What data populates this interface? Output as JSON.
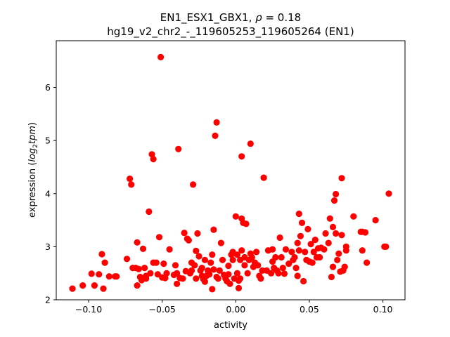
{
  "chart_data": {
    "type": "scatter",
    "title_line1": "EN1_ESX1_GBX1, ",
    "title_rho_symbol": "ρ",
    "title_rho_eq": " = 0.18",
    "title_line2": "hg19_v2_chr2_-_119605253_119605264 (EN1)",
    "xlabel": "activity",
    "ylabel_prefix": "expression (",
    "ylabel_log": "log",
    "ylabel_sub": "2",
    "ylabel_tpm": "tpm",
    "ylabel_suffix": ")",
    "xlim": [
      -0.122,
      0.115
    ],
    "ylim": [
      2.0,
      6.88
    ],
    "xticks": [
      {
        "value": -0.1,
        "label": "−0.10"
      },
      {
        "value": -0.05,
        "label": "−0.05"
      },
      {
        "value": 0.0,
        "label": "0.00"
      },
      {
        "value": 0.05,
        "label": "0.05"
      },
      {
        "value": 0.1,
        "label": "0.10"
      }
    ],
    "yticks": [
      {
        "value": 2,
        "label": "2"
      },
      {
        "value": 3,
        "label": "3"
      },
      {
        "value": 4,
        "label": "4"
      },
      {
        "value": 5,
        "label": "5"
      },
      {
        "value": 6,
        "label": "6"
      }
    ],
    "marker_color": "#ff0000",
    "points": [
      [
        -0.111,
        2.21
      ],
      [
        -0.104,
        2.27
      ],
      [
        -0.098,
        2.49
      ],
      [
        -0.096,
        2.27
      ],
      [
        -0.093,
        2.48
      ],
      [
        -0.091,
        2.86
      ],
      [
        -0.09,
        2.21
      ],
      [
        -0.089,
        2.7
      ],
      [
        -0.086,
        2.44
      ],
      [
        -0.082,
        2.44
      ],
      [
        -0.081,
        2.44
      ],
      [
        -0.074,
        2.77
      ],
      [
        -0.072,
        4.28
      ],
      [
        -0.071,
        4.17
      ],
      [
        -0.07,
        2.6
      ],
      [
        -0.068,
        2.6
      ],
      [
        -0.067,
        3.08
      ],
      [
        -0.067,
        2.27
      ],
      [
        -0.066,
        2.58
      ],
      [
        -0.065,
        2.43
      ],
      [
        -0.064,
        2.37
      ],
      [
        -0.063,
        2.96
      ],
      [
        -0.062,
        2.6
      ],
      [
        -0.061,
        2.4
      ],
      [
        -0.061,
        2.45
      ],
      [
        -0.059,
        3.66
      ],
      [
        -0.058,
        2.5
      ],
      [
        -0.057,
        4.74
      ],
      [
        -0.056,
        4.65
      ],
      [
        -0.056,
        2.7
      ],
      [
        -0.054,
        2.7
      ],
      [
        -0.053,
        2.48
      ],
      [
        -0.052,
        3.18
      ],
      [
        -0.051,
        6.57
      ],
      [
        -0.05,
        2.42
      ],
      [
        -0.049,
        2.68
      ],
      [
        -0.048,
        2.41
      ],
      [
        -0.047,
        2.5
      ],
      [
        -0.045,
        2.95
      ],
      [
        -0.042,
        2.47
      ],
      [
        -0.041,
        2.65
      ],
      [
        -0.04,
        2.3
      ],
      [
        -0.04,
        2.5
      ],
      [
        -0.039,
        4.84
      ],
      [
        -0.038,
        2.41
      ],
      [
        -0.036,
        2.4
      ],
      [
        -0.035,
        3.26
      ],
      [
        -0.034,
        2.54
      ],
      [
        -0.033,
        3.15
      ],
      [
        -0.032,
        3.12
      ],
      [
        -0.031,
        2.5
      ],
      [
        -0.03,
        2.7
      ],
      [
        -0.03,
        2.55
      ],
      [
        -0.029,
        4.17
      ],
      [
        -0.028,
        2.65
      ],
      [
        -0.027,
        2.4
      ],
      [
        -0.027,
        2.92
      ],
      [
        -0.026,
        3.25
      ],
      [
        -0.025,
        2.82
      ],
      [
        -0.024,
        2.55
      ],
      [
        -0.023,
        2.45
      ],
      [
        -0.023,
        2.6
      ],
      [
        -0.022,
        2.39
      ],
      [
        -0.021,
        2.34
      ],
      [
        -0.021,
        2.75
      ],
      [
        -0.02,
        2.45
      ],
      [
        -0.019,
        2.55
      ],
      [
        -0.018,
        2.48
      ],
      [
        -0.017,
        2.7
      ],
      [
        -0.016,
        2.85
      ],
      [
        -0.016,
        2.2
      ],
      [
        -0.015,
        2.57
      ],
      [
        -0.015,
        3.32
      ],
      [
        -0.014,
        5.09
      ],
      [
        -0.013,
        5.34
      ],
      [
        -0.013,
        2.43
      ],
      [
        -0.012,
        2.4
      ],
      [
        -0.011,
        2.55
      ],
      [
        -0.01,
        3.07
      ],
      [
        -0.009,
        2.75
      ],
      [
        -0.008,
        2.47
      ],
      [
        -0.007,
        2.4
      ],
      [
        -0.006,
        2.35
      ],
      [
        -0.005,
        2.48
      ],
      [
        -0.005,
        2.64
      ],
      [
        -0.004,
        2.3
      ],
      [
        -0.003,
        2.85
      ],
      [
        -0.002,
        2.75
      ],
      [
        -0.002,
        2.9
      ],
      [
        -0.001,
        2.4
      ],
      [
        0.0,
        3.57
      ],
      [
        0.001,
        2.85
      ],
      [
        0.001,
        2.5
      ],
      [
        0.002,
        2.36
      ],
      [
        0.002,
        2.22
      ],
      [
        0.003,
        2.4
      ],
      [
        0.003,
        2.75
      ],
      [
        0.004,
        3.53
      ],
      [
        0.004,
        2.93
      ],
      [
        0.004,
        4.7
      ],
      [
        0.005,
        3.45
      ],
      [
        0.006,
        2.8
      ],
      [
        0.006,
        2.65
      ],
      [
        0.007,
        3.43
      ],
      [
        0.008,
        2.5
      ],
      [
        0.009,
        2.75
      ],
      [
        0.01,
        4.94
      ],
      [
        0.01,
        2.87
      ],
      [
        0.011,
        2.8
      ],
      [
        0.012,
        2.62
      ],
      [
        0.013,
        2.7
      ],
      [
        0.014,
        2.9
      ],
      [
        0.015,
        2.65
      ],
      [
        0.016,
        2.45
      ],
      [
        0.017,
        2.4
      ],
      [
        0.018,
        2.55
      ],
      [
        0.019,
        4.3
      ],
      [
        0.021,
        2.55
      ],
      [
        0.022,
        2.93
      ],
      [
        0.024,
        2.5
      ],
      [
        0.025,
        2.72
      ],
      [
        0.025,
        2.95
      ],
      [
        0.026,
        2.6
      ],
      [
        0.027,
        2.8
      ],
      [
        0.028,
        2.55
      ],
      [
        0.029,
        2.5
      ],
      [
        0.03,
        3.17
      ],
      [
        0.031,
        2.8
      ],
      [
        0.032,
        2.6
      ],
      [
        0.033,
        2.49
      ],
      [
        0.034,
        2.95
      ],
      [
        0.036,
        2.68
      ],
      [
        0.038,
        2.9
      ],
      [
        0.039,
        2.75
      ],
      [
        0.04,
        2.8
      ],
      [
        0.041,
        2.6
      ],
      [
        0.042,
        3.07
      ],
      [
        0.042,
        2.45
      ],
      [
        0.043,
        3.62
      ],
      [
        0.043,
        2.93
      ],
      [
        0.044,
        3.2
      ],
      [
        0.045,
        3.45
      ],
      [
        0.046,
        2.35
      ],
      [
        0.047,
        2.9
      ],
      [
        0.048,
        2.75
      ],
      [
        0.049,
        3.33
      ],
      [
        0.05,
        2.72
      ],
      [
        0.051,
        3.05
      ],
      [
        0.052,
        2.7
      ],
      [
        0.053,
        2.9
      ],
      [
        0.054,
        3.13
      ],
      [
        0.055,
        2.8
      ],
      [
        0.056,
        2.97
      ],
      [
        0.057,
        2.8
      ],
      [
        0.058,
        2.98
      ],
      [
        0.06,
        2.95
      ],
      [
        0.061,
        3.25
      ],
      [
        0.063,
        3.07
      ],
      [
        0.064,
        3.53
      ],
      [
        0.065,
        2.43
      ],
      [
        0.066,
        2.62
      ],
      [
        0.066,
        3.37
      ],
      [
        0.067,
        3.87
      ],
      [
        0.068,
        3.99
      ],
      [
        0.068,
        3.25
      ],
      [
        0.069,
        2.75
      ],
      [
        0.07,
        2.87
      ],
      [
        0.071,
        2.53
      ],
      [
        0.072,
        4.29
      ],
      [
        0.072,
        3.22
      ],
      [
        0.073,
        2.55
      ],
      [
        0.074,
        2.62
      ],
      [
        0.075,
        2.93
      ],
      [
        0.075,
        3.0
      ],
      [
        0.08,
        3.57
      ],
      [
        0.085,
        3.28
      ],
      [
        0.086,
        3.28
      ],
      [
        0.086,
        2.93
      ],
      [
        0.088,
        3.27
      ],
      [
        0.089,
        2.7
      ],
      [
        0.095,
        3.5
      ],
      [
        0.101,
        3.0
      ],
      [
        0.102,
        3.0
      ],
      [
        0.104,
        4.0
      ]
    ]
  }
}
